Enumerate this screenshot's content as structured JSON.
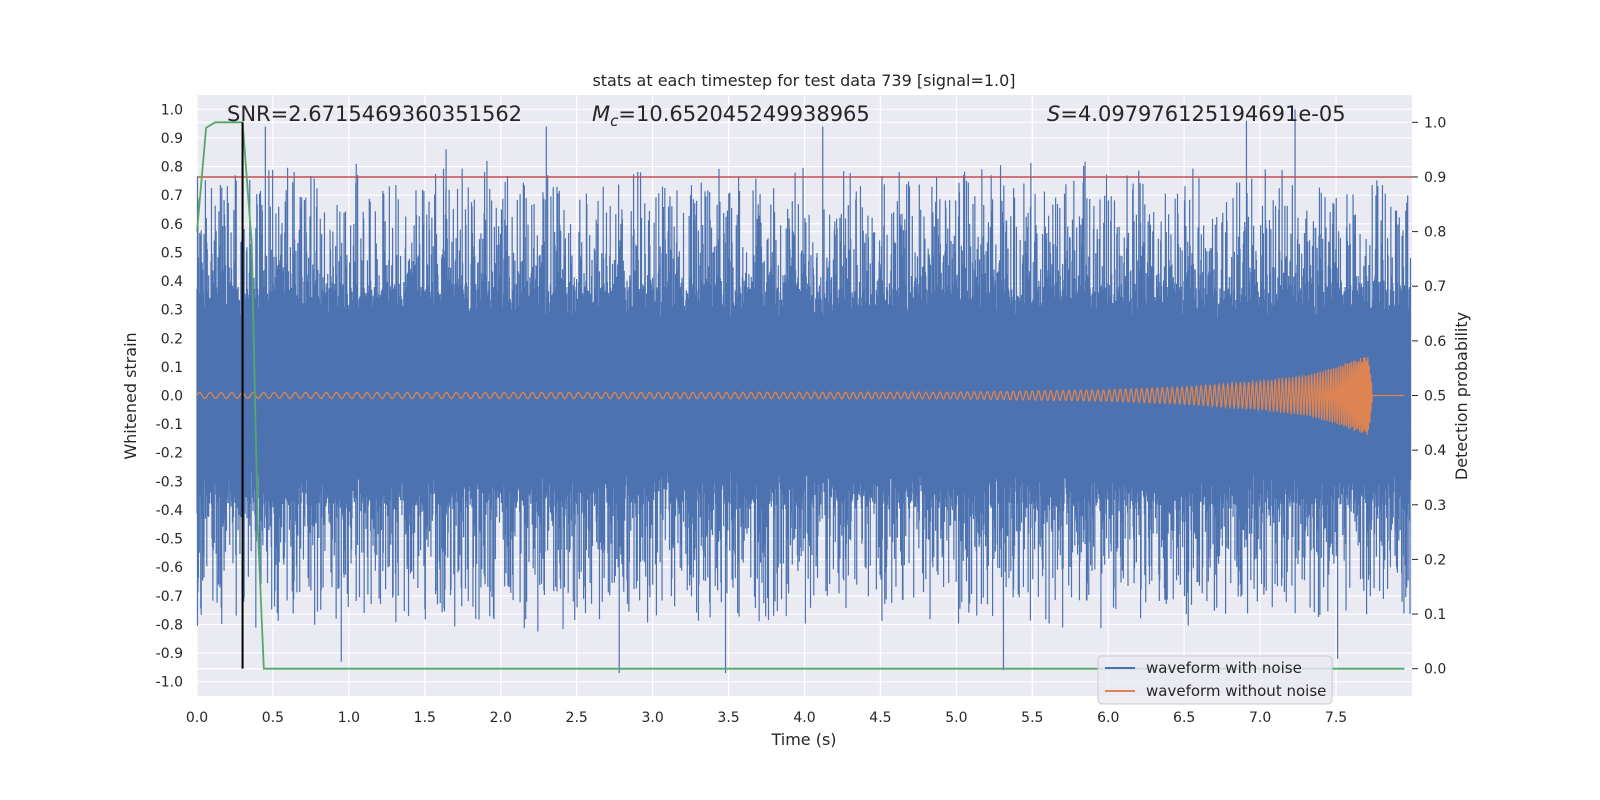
{
  "chart_data": {
    "type": "line",
    "title": "stats at each timestep for test data 739 [signal=1.0]",
    "xlabel": "Time (s)",
    "ylabel": "Whitened strain",
    "ylabel_right": "Detection probability",
    "xlim": [
      0.0,
      8.0
    ],
    "ylim": [
      -1.05,
      1.05
    ],
    "ylim_right": [
      -0.05,
      1.05
    ],
    "xticks": [
      "0.0",
      "0.5",
      "1.0",
      "1.5",
      "2.0",
      "2.5",
      "3.0",
      "3.5",
      "4.0",
      "4.5",
      "5.0",
      "5.5",
      "6.0",
      "6.5",
      "7.0",
      "7.5"
    ],
    "yticks": [
      "-1.0",
      "-0.9",
      "-0.8",
      "-0.7",
      "-0.6",
      "-0.5",
      "-0.4",
      "-0.3",
      "-0.2",
      "-0.1",
      "0.0",
      "0.1",
      "0.2",
      "0.3",
      "0.4",
      "0.5",
      "0.6",
      "0.7",
      "0.8",
      "0.9",
      "1.0"
    ],
    "yticks_right": [
      "0.0",
      "0.1",
      "0.2",
      "0.3",
      "0.4",
      "0.5",
      "0.6",
      "0.7",
      "0.8",
      "0.9",
      "1.0"
    ],
    "annotations": {
      "snr": "SNR=2.6715469360351562",
      "mc_symbol": "M",
      "mc_subscript": "c",
      "mc_value": "=10.652045249938965",
      "s_symbol": "S",
      "s_value": "=4.097976125194691e-05"
    },
    "threshold": {
      "y_right": 0.9,
      "color": "#c44e52"
    },
    "vline": {
      "x": 0.3,
      "color": "#000000"
    },
    "series": [
      {
        "name": "waveform with noise",
        "color": "#4c72b0",
        "note": "dense noise, amplitude mostly within +/-0.5, peaks to about +/-0.97",
        "peaks": [
          [
            0.45,
            0.94
          ],
          [
            1.64,
            0.86
          ],
          [
            2.3,
            0.94
          ],
          [
            4.12,
            0.94
          ],
          [
            6.91,
            0.96
          ],
          [
            7.23,
            1.0
          ],
          [
            2.78,
            -0.97
          ],
          [
            3.48,
            -0.97
          ],
          [
            5.31,
            -0.96
          ],
          [
            7.51,
            -0.92
          ],
          [
            0.95,
            -0.93
          ]
        ]
      },
      {
        "name": "waveform without noise",
        "color": "#dd8452",
        "note": "chirp with growing amplitude",
        "envelope": [
          [
            0.0,
            0.01
          ],
          [
            5.0,
            0.012
          ],
          [
            6.0,
            0.02
          ],
          [
            6.5,
            0.03
          ],
          [
            7.0,
            0.05
          ],
          [
            7.3,
            0.07
          ],
          [
            7.5,
            0.1
          ],
          [
            7.65,
            0.13
          ],
          [
            7.72,
            0.14
          ],
          [
            7.74,
            0.0
          ]
        ]
      },
      {
        "name": "detection probability",
        "color": "#55a868",
        "axis": "right",
        "points": [
          [
            0.0,
            0.8
          ],
          [
            0.06,
            0.99
          ],
          [
            0.12,
            1.0
          ],
          [
            0.3,
            1.0
          ],
          [
            0.36,
            0.78
          ],
          [
            0.4,
            0.26
          ],
          [
            0.44,
            0.0
          ],
          [
            7.95,
            0.0
          ]
        ]
      }
    ],
    "legend": {
      "placement": "bottom-right",
      "entries": [
        "waveform with noise",
        "waveform without noise"
      ]
    },
    "grid": true
  }
}
